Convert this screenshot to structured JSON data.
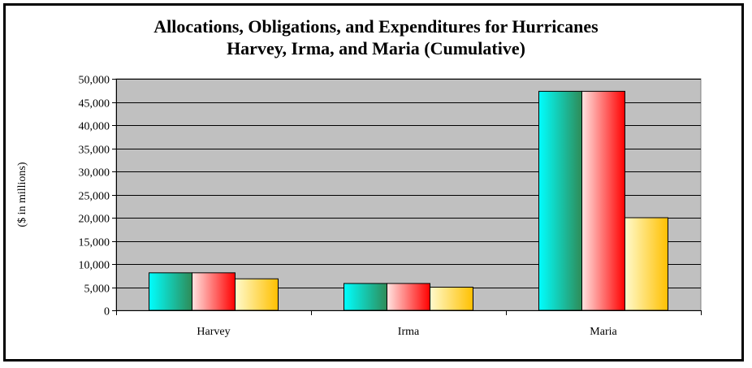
{
  "chart_data": {
    "type": "bar",
    "title_lines": [
      "Allocations, Obligations, and Expenditures for Hurricanes",
      "Harvey, Irma, and Maria (Cumulative)"
    ],
    "categories": [
      "Harvey",
      "Irma",
      "Maria"
    ],
    "series": [
      {
        "values": [
          8100,
          5800,
          47300
        ],
        "color_start": "#00ffff",
        "color_end": "#2e8b57"
      },
      {
        "values": [
          8100,
          5800,
          47300
        ],
        "color_start": "#ffe4e1",
        "color_end": "#ff0000"
      },
      {
        "values": [
          6800,
          5000,
          20000
        ],
        "color_start": "#fffacd",
        "color_end": "#ffc000"
      }
    ],
    "ylabel": "($ in millions)",
    "ylim": [
      0,
      50000
    ],
    "yticks": [
      0,
      5000,
      10000,
      15000,
      20000,
      25000,
      30000,
      35000,
      40000,
      45000,
      50000
    ],
    "ytick_labels": [
      "0",
      "5,000",
      "10,000",
      "15,000",
      "20,000",
      "25,000",
      "30,000",
      "35,000",
      "40,000",
      "45,000",
      "50,000"
    ],
    "grid": true,
    "plot_background": "#c0c0c0",
    "legend": "none"
  }
}
